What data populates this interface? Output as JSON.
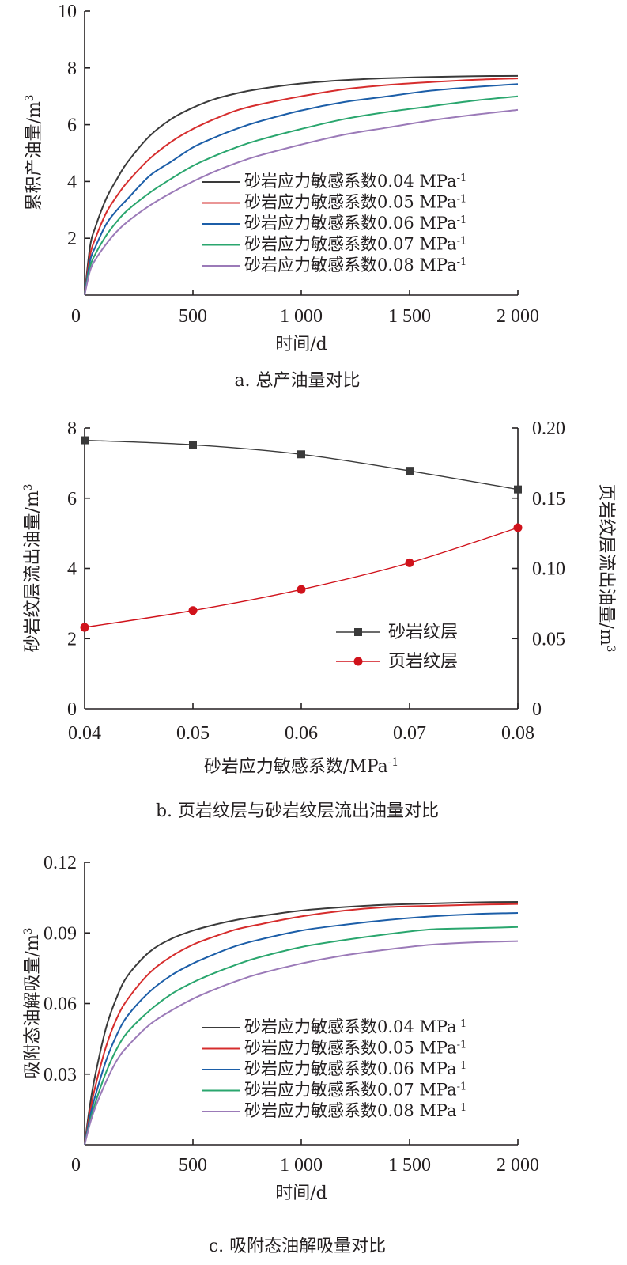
{
  "chart_data": [
    {
      "type": "line",
      "caption": "a. 总产油量对比",
      "xlabel": "时间/d",
      "ylabel": "累积产油量/m",
      "ylabel_sup": "3",
      "xlim": [
        0,
        2000
      ],
      "ylim": [
        0,
        10
      ],
      "xticks": [
        {
          "v": 0,
          "label": "0"
        },
        {
          "v": 500,
          "label": "500"
        },
        {
          "v": 1000,
          "label": "1 000"
        },
        {
          "v": 1500,
          "label": "1 500"
        },
        {
          "v": 2000,
          "label": "2 000"
        }
      ],
      "yticks": [
        {
          "v": 0,
          "label": ""
        },
        {
          "v": 2,
          "label": "2"
        },
        {
          "v": 4,
          "label": "4"
        },
        {
          "v": 6,
          "label": "6"
        },
        {
          "v": 8,
          "label": "8"
        },
        {
          "v": 10,
          "label": "10"
        }
      ],
      "legend_position": "right",
      "grid": false,
      "x": [
        0,
        25,
        50,
        100,
        150,
        200,
        300,
        400,
        500,
        600,
        700,
        800,
        1000,
        1200,
        1400,
        1600,
        1800,
        2000
      ],
      "series": [
        {
          "name": "砂岩应力敏感系数0.04 MPa",
          "unit_sup": "-1",
          "color": "#3a3a3a",
          "values": [
            0,
            1.7,
            2.4,
            3.4,
            4.1,
            4.7,
            5.6,
            6.2,
            6.6,
            6.9,
            7.1,
            7.25,
            7.45,
            7.57,
            7.64,
            7.68,
            7.71,
            7.72
          ]
        },
        {
          "name": "砂岩应力敏感系数0.05 MPa",
          "unit_sup": "-1",
          "color": "#d62d2d",
          "values": [
            0,
            1.4,
            2.0,
            2.9,
            3.5,
            4.0,
            4.8,
            5.4,
            5.85,
            6.2,
            6.5,
            6.7,
            7.0,
            7.25,
            7.4,
            7.5,
            7.58,
            7.63
          ]
        },
        {
          "name": "砂岩应力敏感系数0.06 MPa",
          "unit_sup": "-1",
          "color": "#1c5ea8",
          "values": [
            0,
            1.2,
            1.7,
            2.5,
            3.0,
            3.4,
            4.2,
            4.7,
            5.2,
            5.55,
            5.85,
            6.1,
            6.5,
            6.8,
            7.0,
            7.2,
            7.33,
            7.43
          ]
        },
        {
          "name": "砂岩应力敏感系数0.07 MPa",
          "unit_sup": "-1",
          "color": "#2aa66e",
          "values": [
            0,
            1.0,
            1.45,
            2.1,
            2.6,
            3.0,
            3.6,
            4.1,
            4.55,
            4.9,
            5.2,
            5.45,
            5.85,
            6.2,
            6.45,
            6.65,
            6.85,
            7.0
          ]
        },
        {
          "name": "砂岩应力敏感系数0.08 MPa",
          "unit_sup": "-1",
          "color": "#9b7ab8",
          "values": [
            0,
            0.85,
            1.25,
            1.8,
            2.25,
            2.6,
            3.15,
            3.6,
            4.0,
            4.35,
            4.65,
            4.9,
            5.3,
            5.65,
            5.9,
            6.15,
            6.35,
            6.52
          ]
        }
      ]
    },
    {
      "type": "line",
      "caption": "b. 页岩纹层与砂岩纹层流出油量对比",
      "xlabel": "砂岩应力敏感系数/MPa",
      "xlabel_sup": "-1",
      "ylabel": "砂岩纹层流出油量/m",
      "ylabel_sup": "3",
      "y2label": "页岩纹层流出油量/m",
      "y2label_sup": "3",
      "xlim": [
        0.04,
        0.08
      ],
      "ylim": [
        0,
        8
      ],
      "y2lim": [
        0,
        0.2
      ],
      "xticks": [
        {
          "v": 0.04,
          "label": "0.04"
        },
        {
          "v": 0.05,
          "label": "0.05"
        },
        {
          "v": 0.06,
          "label": "0.06"
        },
        {
          "v": 0.07,
          "label": "0.07"
        },
        {
          "v": 0.08,
          "label": "0.08"
        }
      ],
      "yticks": [
        {
          "v": 0,
          "label": "0"
        },
        {
          "v": 2,
          "label": "2"
        },
        {
          "v": 4,
          "label": "4"
        },
        {
          "v": 6,
          "label": "6"
        },
        {
          "v": 8,
          "label": "8"
        }
      ],
      "y2ticks": [
        {
          "v": 0,
          "label": "0"
        },
        {
          "v": 0.05,
          "label": "0.05"
        },
        {
          "v": 0.1,
          "label": "0.10"
        },
        {
          "v": 0.15,
          "label": "0.15"
        },
        {
          "v": 0.2,
          "label": "0.20"
        }
      ],
      "legend_position": "lower-right",
      "grid": false,
      "x": [
        0.04,
        0.05,
        0.06,
        0.07,
        0.08
      ],
      "series": [
        {
          "name": "砂岩纹层",
          "axis": "left",
          "marker": "square",
          "color": "#3a3a3a",
          "values": [
            7.65,
            7.52,
            7.25,
            6.78,
            6.25
          ]
        },
        {
          "name": "页岩纹层",
          "axis": "right",
          "marker": "circle",
          "color": "#d0121b",
          "values": [
            0.058,
            0.07,
            0.085,
            0.104,
            0.129
          ]
        }
      ]
    },
    {
      "type": "line",
      "caption": "c. 吸附态油解吸量对比",
      "xlabel": "时间/d",
      "ylabel": "吸附态油解吸量/m",
      "ylabel_sup": "3",
      "xlim": [
        0,
        2000
      ],
      "ylim": [
        0,
        0.12
      ],
      "xticks": [
        {
          "v": 0,
          "label": "0"
        },
        {
          "v": 500,
          "label": "500"
        },
        {
          "v": 1000,
          "label": "1 000"
        },
        {
          "v": 1500,
          "label": "1 500"
        },
        {
          "v": 2000,
          "label": "2 000"
        }
      ],
      "yticks": [
        {
          "v": 0,
          "label": ""
        },
        {
          "v": 0.03,
          "label": "0.03"
        },
        {
          "v": 0.06,
          "label": "0.06"
        },
        {
          "v": 0.09,
          "label": "0.09"
        },
        {
          "v": 0.12,
          "label": "0.12"
        }
      ],
      "legend_position": "lower-right",
      "grid": false,
      "x": [
        0,
        25,
        50,
        100,
        150,
        200,
        300,
        400,
        500,
        600,
        700,
        800,
        1000,
        1200,
        1400,
        1600,
        1800,
        2000
      ],
      "series": [
        {
          "name": "砂岩应力敏感系数0.04 MPa",
          "unit_sup": "-1",
          "color": "#3a3a3a",
          "values": [
            0,
            0.017,
            0.03,
            0.05,
            0.063,
            0.072,
            0.082,
            0.0875,
            0.091,
            0.0935,
            0.0955,
            0.097,
            0.0995,
            0.101,
            0.102,
            0.1025,
            0.103,
            0.1032
          ]
        },
        {
          "name": "砂岩应力敏感系数0.05 MPa",
          "unit_sup": "-1",
          "color": "#d62d2d",
          "values": [
            0,
            0.014,
            0.025,
            0.042,
            0.054,
            0.062,
            0.073,
            0.08,
            0.085,
            0.0885,
            0.0915,
            0.0935,
            0.097,
            0.0995,
            0.101,
            0.1015,
            0.102,
            0.1023
          ]
        },
        {
          "name": "砂岩应力敏感系数0.06 MPa",
          "unit_sup": "-1",
          "color": "#1c5ea8",
          "values": [
            0,
            0.012,
            0.021,
            0.036,
            0.047,
            0.055,
            0.065,
            0.072,
            0.077,
            0.081,
            0.0845,
            0.087,
            0.091,
            0.0935,
            0.0955,
            0.097,
            0.098,
            0.0985
          ]
        },
        {
          "name": "砂岩应力敏感系数0.07 MPa",
          "unit_sup": "-1",
          "color": "#2aa66e",
          "values": [
            0,
            0.01,
            0.018,
            0.031,
            0.041,
            0.048,
            0.057,
            0.064,
            0.069,
            0.073,
            0.0765,
            0.0795,
            0.084,
            0.087,
            0.0895,
            0.0915,
            0.092,
            0.0925
          ]
        },
        {
          "name": "砂岩应力敏感系数0.08 MPa",
          "unit_sup": "-1",
          "color": "#9b7ab8",
          "values": [
            0,
            0.009,
            0.016,
            0.027,
            0.036,
            0.042,
            0.051,
            0.057,
            0.062,
            0.066,
            0.0695,
            0.0725,
            0.077,
            0.0805,
            0.083,
            0.085,
            0.086,
            0.0865
          ]
        }
      ]
    }
  ]
}
